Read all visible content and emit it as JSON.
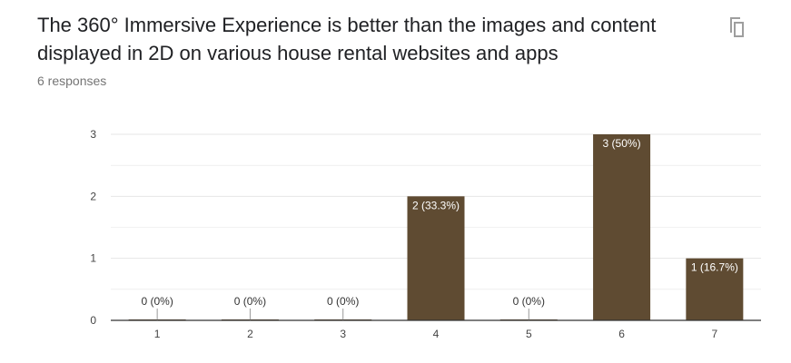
{
  "question": {
    "title": "The 360° Immersive Experience is better than the images and content displayed in 2D on various house rental websites and apps",
    "responses": "6 responses"
  },
  "icons": {
    "copy": "copy-icon"
  },
  "colors": {
    "bar": "#5f4b32",
    "grid": "#e6e6e6",
    "axis": "#333333"
  },
  "chart_data": {
    "type": "bar",
    "categories": [
      "1",
      "2",
      "3",
      "4",
      "5",
      "6",
      "7"
    ],
    "values": [
      0,
      0,
      0,
      2,
      0,
      3,
      1
    ],
    "labels": [
      "0 (0%)",
      "0 (0%)",
      "0 (0%)",
      "2 (33.3%)",
      "0 (0%)",
      "3 (50%)",
      "1 (16.7%)"
    ],
    "yticks": [
      "0",
      "1",
      "2",
      "3"
    ],
    "ylim": [
      0,
      3
    ],
    "title": "",
    "xlabel": "",
    "ylabel": "",
    "grid": true
  }
}
